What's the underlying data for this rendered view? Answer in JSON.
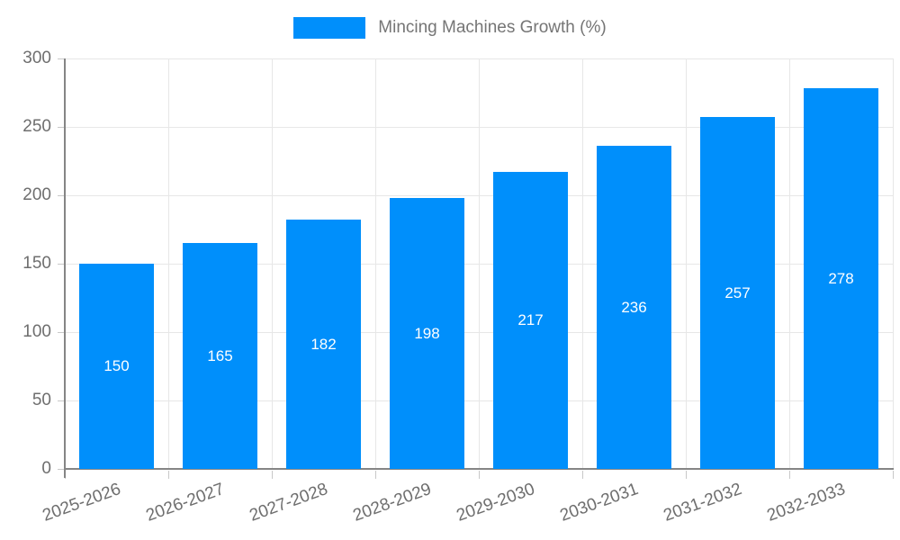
{
  "chart_data": {
    "type": "bar",
    "title": "Mincing Machines Growth (%)",
    "legend": {
      "label": "Mincing Machines Growth (%)",
      "position": "top"
    },
    "categories": [
      "2025-2026",
      "2026-2027",
      "2027-2028",
      "2028-2029",
      "2029-2030",
      "2030-2031",
      "2031-2032",
      "2032-2033"
    ],
    "values": [
      150,
      165,
      182,
      198,
      217,
      236,
      257,
      278
    ],
    "y_ticks": [
      0,
      50,
      100,
      150,
      200,
      250,
      300
    ],
    "ylim": [
      0,
      300
    ],
    "xlabel": "",
    "ylabel": "",
    "grid": true,
    "data_labels": "inside-center",
    "colors": {
      "bar": "#008FFB",
      "grid": "#e7e7e7",
      "axis_line": "#858585",
      "tick": "#c8c8c8",
      "axis_label_text": "#6e6e6e",
      "legend_text": "#757575",
      "data_label_text": "#ffffff"
    }
  }
}
